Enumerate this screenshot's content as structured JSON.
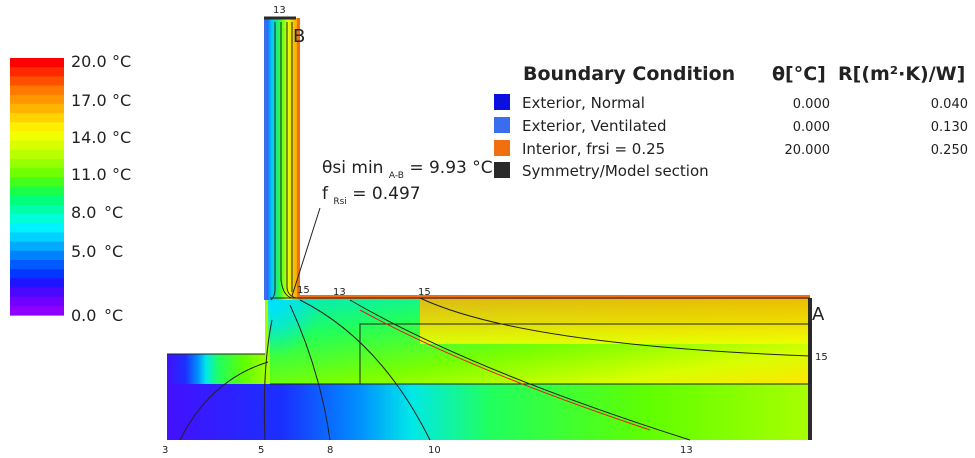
{
  "scale": {
    "labels": [
      "20.0",
      "17.0",
      "14.0",
      "11.0",
      "8.0",
      "5.0",
      "0.0"
    ],
    "unit": "°C",
    "colors": [
      "#ff0000",
      "#ff2800",
      "#ff5000",
      "#ff7800",
      "#ff9600",
      "#ffb400",
      "#ffd200",
      "#ffee00",
      "#f2ff00",
      "#d8ff00",
      "#b8ff00",
      "#96ff00",
      "#6eff00",
      "#44ff1a",
      "#1aff4a",
      "#00ff7a",
      "#00ffaa",
      "#00ffd8",
      "#00f2ff",
      "#00d2ff",
      "#00aaff",
      "#0082ff",
      "#005aff",
      "#0038ff",
      "#2014ff",
      "#4a08ff",
      "#7000ff",
      "#8c00ff"
    ]
  },
  "points": {
    "a": "A",
    "b": "B"
  },
  "isotherms": {
    "top": "13",
    "near_corner": "15",
    "mid_top_1": "13",
    "mid_top_2": "15",
    "right": "15",
    "bottom": [
      "3",
      "5",
      "8",
      "10",
      "13"
    ]
  },
  "annotation": {
    "theta_line": "θsi min",
    "theta_sub": "A-B",
    "theta_value": "= 9.93 °C",
    "f_line": "f",
    "f_sub": "Rsi",
    "f_value": "= 0.497"
  },
  "legend": {
    "title": "Boundary Condition",
    "theta_header": "θ[°C]",
    "r_header": "R[(m²·K)/W]",
    "rows": [
      {
        "label": "Exterior, Normal",
        "theta": "0.000",
        "r": "0.040",
        "color": "#0a10e0"
      },
      {
        "label": "Exterior, Ventilated",
        "theta": "0.000",
        "r": "0.130",
        "color": "#3a6cf0"
      },
      {
        "label": "Interior, frsi = 0.25",
        "theta": "20.000",
        "r": "0.250",
        "color": "#f07010"
      },
      {
        "label": "Symmetry/Model section",
        "theta": "",
        "r": "",
        "color": "#2a2a2a"
      }
    ]
  }
}
